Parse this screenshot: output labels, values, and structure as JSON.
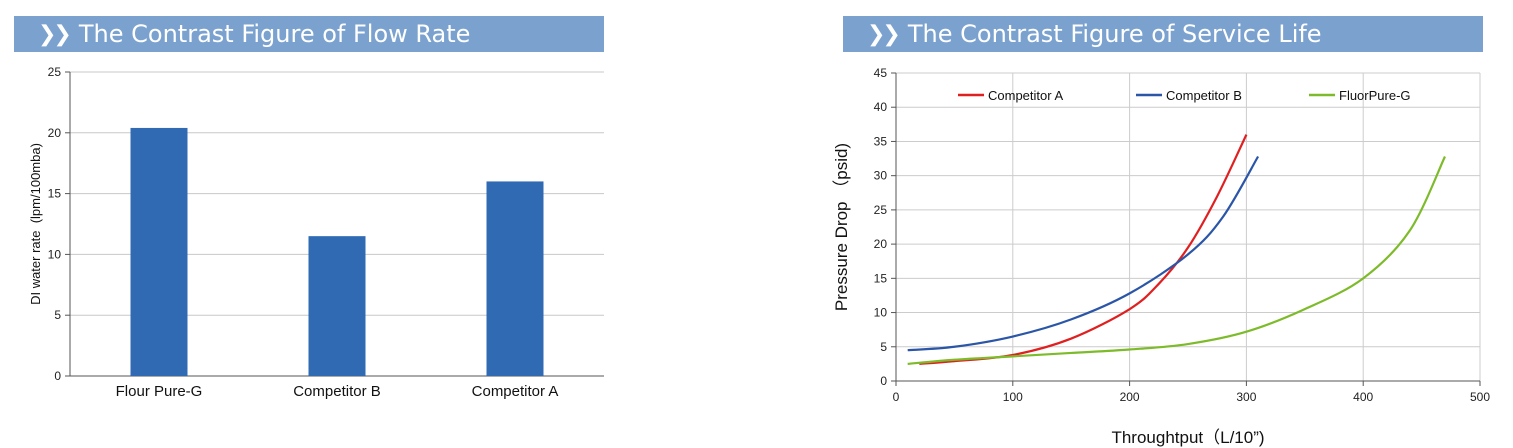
{
  "chart_data": [
    {
      "type": "bar",
      "title": "The Contrast Figure of Flow Rate",
      "ylabel": "DI water rate  (lpm/100mba)",
      "xlabel": "",
      "categories": [
        "Flour Pure-G",
        "Competitor B",
        "Competitor A"
      ],
      "values": [
        20.4,
        11.5,
        16.0
      ],
      "ylim": [
        0,
        25
      ],
      "yticks": [
        0,
        5,
        10,
        15,
        20,
        25
      ],
      "grid": "horizontal",
      "bar_color": "#2f6ab3"
    },
    {
      "type": "line",
      "title": "The Contrast Figure of Service Life",
      "xlabel": "Throughtput（L/10”)",
      "ylabel": "Pressure Drop （psid)",
      "xlim": [
        0,
        500
      ],
      "ylim": [
        0,
        45
      ],
      "xticks": [
        0,
        100,
        200,
        300,
        400,
        500
      ],
      "yticks": [
        0,
        5,
        10,
        15,
        20,
        25,
        30,
        35,
        40,
        45
      ],
      "grid": "both",
      "legend_position": "top",
      "series": [
        {
          "name": "Competitor A",
          "color": "#e02020",
          "x": [
            20,
            50,
            100,
            150,
            200,
            225,
            250,
            275,
            300
          ],
          "y": [
            2.5,
            2.9,
            3.8,
            6.2,
            10.5,
            14.2,
            19.5,
            27.0,
            36.0
          ]
        },
        {
          "name": "Competitor B",
          "color": "#2b56a8",
          "x": [
            10,
            50,
            100,
            150,
            200,
            250,
            280,
            310
          ],
          "y": [
            4.5,
            5.0,
            6.5,
            9.0,
            12.8,
            18.5,
            24.0,
            32.8
          ]
        },
        {
          "name": "FluorPure-G",
          "color": "#7dbb2a",
          "x": [
            10,
            50,
            100,
            150,
            200,
            250,
            300,
            350,
            400,
            440,
            470
          ],
          "y": [
            2.5,
            3.1,
            3.6,
            4.1,
            4.6,
            5.4,
            7.2,
            10.5,
            15.0,
            22.0,
            32.8
          ]
        }
      ]
    }
  ]
}
